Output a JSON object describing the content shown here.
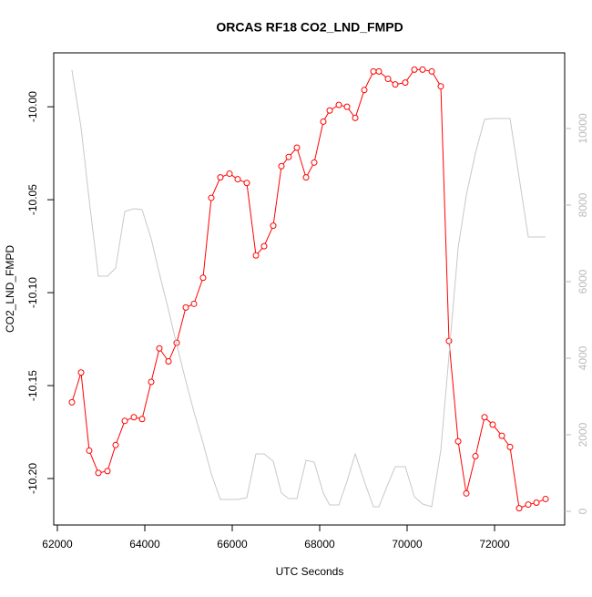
{
  "chart_data": {
    "type": "line",
    "title": "ORCAS RF18 CO2_LND_FMPD",
    "xlabel": "UTC Seconds",
    "ylabel": "CO2_LND_FMPD",
    "x": [
      62333,
      62542,
      62729,
      62938,
      63146,
      63333,
      63542,
      63750,
      63938,
      64146,
      64333,
      64542,
      64729,
      64938,
      65125,
      65333,
      65521,
      65729,
      65938,
      66125,
      66333,
      66542,
      66729,
      66938,
      67125,
      67292,
      67479,
      67688,
      67875,
      68083,
      68229,
      68438,
      68625,
      68813,
      69021,
      69229,
      69354,
      69563,
      69729,
      69958,
      70167,
      70354,
      70563,
      70771,
      70958,
      71167,
      71354,
      71563,
      71771,
      71958,
      72167,
      72354,
      72563,
      72771,
      72958,
      73167
    ],
    "series": [
      {
        "name": "CO2_LND_FMPD",
        "color": "#ff0000",
        "axis": "y",
        "markers": true,
        "values": [
          -10.159,
          -10.143,
          -10.185,
          -10.197,
          -10.196,
          -10.182,
          -10.169,
          -10.167,
          -10.168,
          -10.148,
          -10.13,
          -10.137,
          -10.127,
          -10.108,
          -10.106,
          -10.092,
          -10.049,
          -10.038,
          -10.036,
          -10.039,
          -10.041,
          -10.08,
          -10.075,
          -10.064,
          -10.032,
          -10.027,
          -10.022,
          -10.038,
          -10.03,
          -10.008,
          -10.002,
          -9.999,
          -10.0,
          -10.006,
          -9.991,
          -9.981,
          -9.981,
          -9.985,
          -9.988,
          -9.987,
          -9.98,
          -9.98,
          -9.981,
          -9.989,
          -10.126,
          -10.18,
          -10.208,
          -10.188,
          -10.167,
          -10.171,
          -10.177,
          -10.183,
          -10.216,
          -10.214,
          -10.213,
          -10.211
        ]
      },
      {
        "color": "#c8c8c8",
        "axis": "y2",
        "markers": false,
        "values": [
          11524,
          10024,
          8119,
          6143,
          6143,
          6357,
          7833,
          7905,
          7881,
          7119,
          6214,
          5262,
          4357,
          3405,
          2595,
          1786,
          976,
          310,
          310,
          310,
          357,
          1500,
          1500,
          1310,
          476,
          333,
          333,
          1333,
          1286,
          476,
          167,
          167,
          786,
          1500,
          786,
          119,
          119,
          714,
          1167,
          1167,
          381,
          190,
          119,
          1595,
          4071,
          6881,
          8262,
          9357,
          10238,
          10262,
          10262,
          10262,
          8714,
          7167,
          7167,
          7167
        ]
      }
    ],
    "xlim": [
      61917,
      73604
    ],
    "xticks": [
      62000,
      64000,
      66000,
      68000,
      70000,
      72000
    ],
    "ylim": [
      -10.225,
      -9.971
    ],
    "yticks": [
      {
        "value": -10,
        "label": "-10.00"
      },
      -10.05,
      {
        "value": -10.1,
        "label": "-10.10"
      },
      -10.15,
      {
        "value": -10.2,
        "label": "-10.20"
      }
    ],
    "y2lim": [
      -357,
      11976
    ],
    "y2ticks": [
      0,
      2000,
      4000,
      6000,
      8000,
      10000
    ],
    "y2color": "#bbbbbb"
  }
}
